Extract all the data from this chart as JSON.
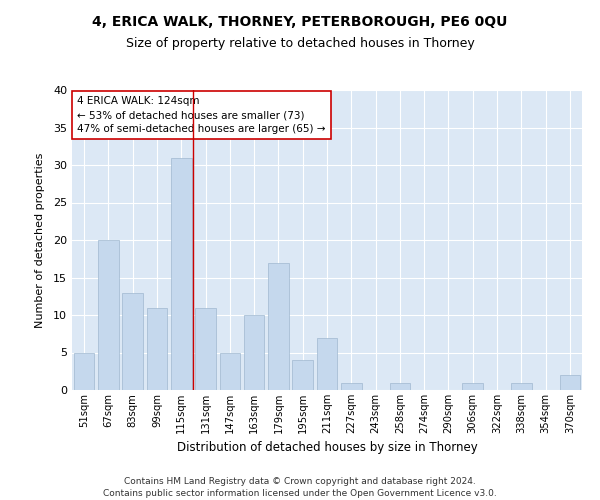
{
  "title1": "4, ERICA WALK, THORNEY, PETERBOROUGH, PE6 0QU",
  "title2": "Size of property relative to detached houses in Thorney",
  "xlabel": "Distribution of detached houses by size in Thorney",
  "ylabel": "Number of detached properties",
  "categories": [
    "51sqm",
    "67sqm",
    "83sqm",
    "99sqm",
    "115sqm",
    "131sqm",
    "147sqm",
    "163sqm",
    "179sqm",
    "195sqm",
    "211sqm",
    "227sqm",
    "243sqm",
    "258sqm",
    "274sqm",
    "290sqm",
    "306sqm",
    "322sqm",
    "338sqm",
    "354sqm",
    "370sqm"
  ],
  "values": [
    5,
    20,
    13,
    11,
    31,
    11,
    5,
    10,
    17,
    4,
    7,
    1,
    0,
    1,
    0,
    0,
    1,
    0,
    1,
    0,
    2
  ],
  "bar_color": "#c5d8ed",
  "bar_edge_color": "#a0b8d0",
  "vline_x": 4.5,
  "vline_color": "#cc0000",
  "annotation_text": "4 ERICA WALK: 124sqm\n← 53% of detached houses are smaller (73)\n47% of semi-detached houses are larger (65) →",
  "annotation_box_color": "#ffffff",
  "annotation_box_edge": "#cc0000",
  "ylim": [
    0,
    40
  ],
  "yticks": [
    0,
    5,
    10,
    15,
    20,
    25,
    30,
    35,
    40
  ],
  "footer1": "Contains HM Land Registry data © Crown copyright and database right 2024.",
  "footer2": "Contains public sector information licensed under the Open Government Licence v3.0.",
  "bg_color": "#dce8f5",
  "fig_bg_color": "#ffffff"
}
